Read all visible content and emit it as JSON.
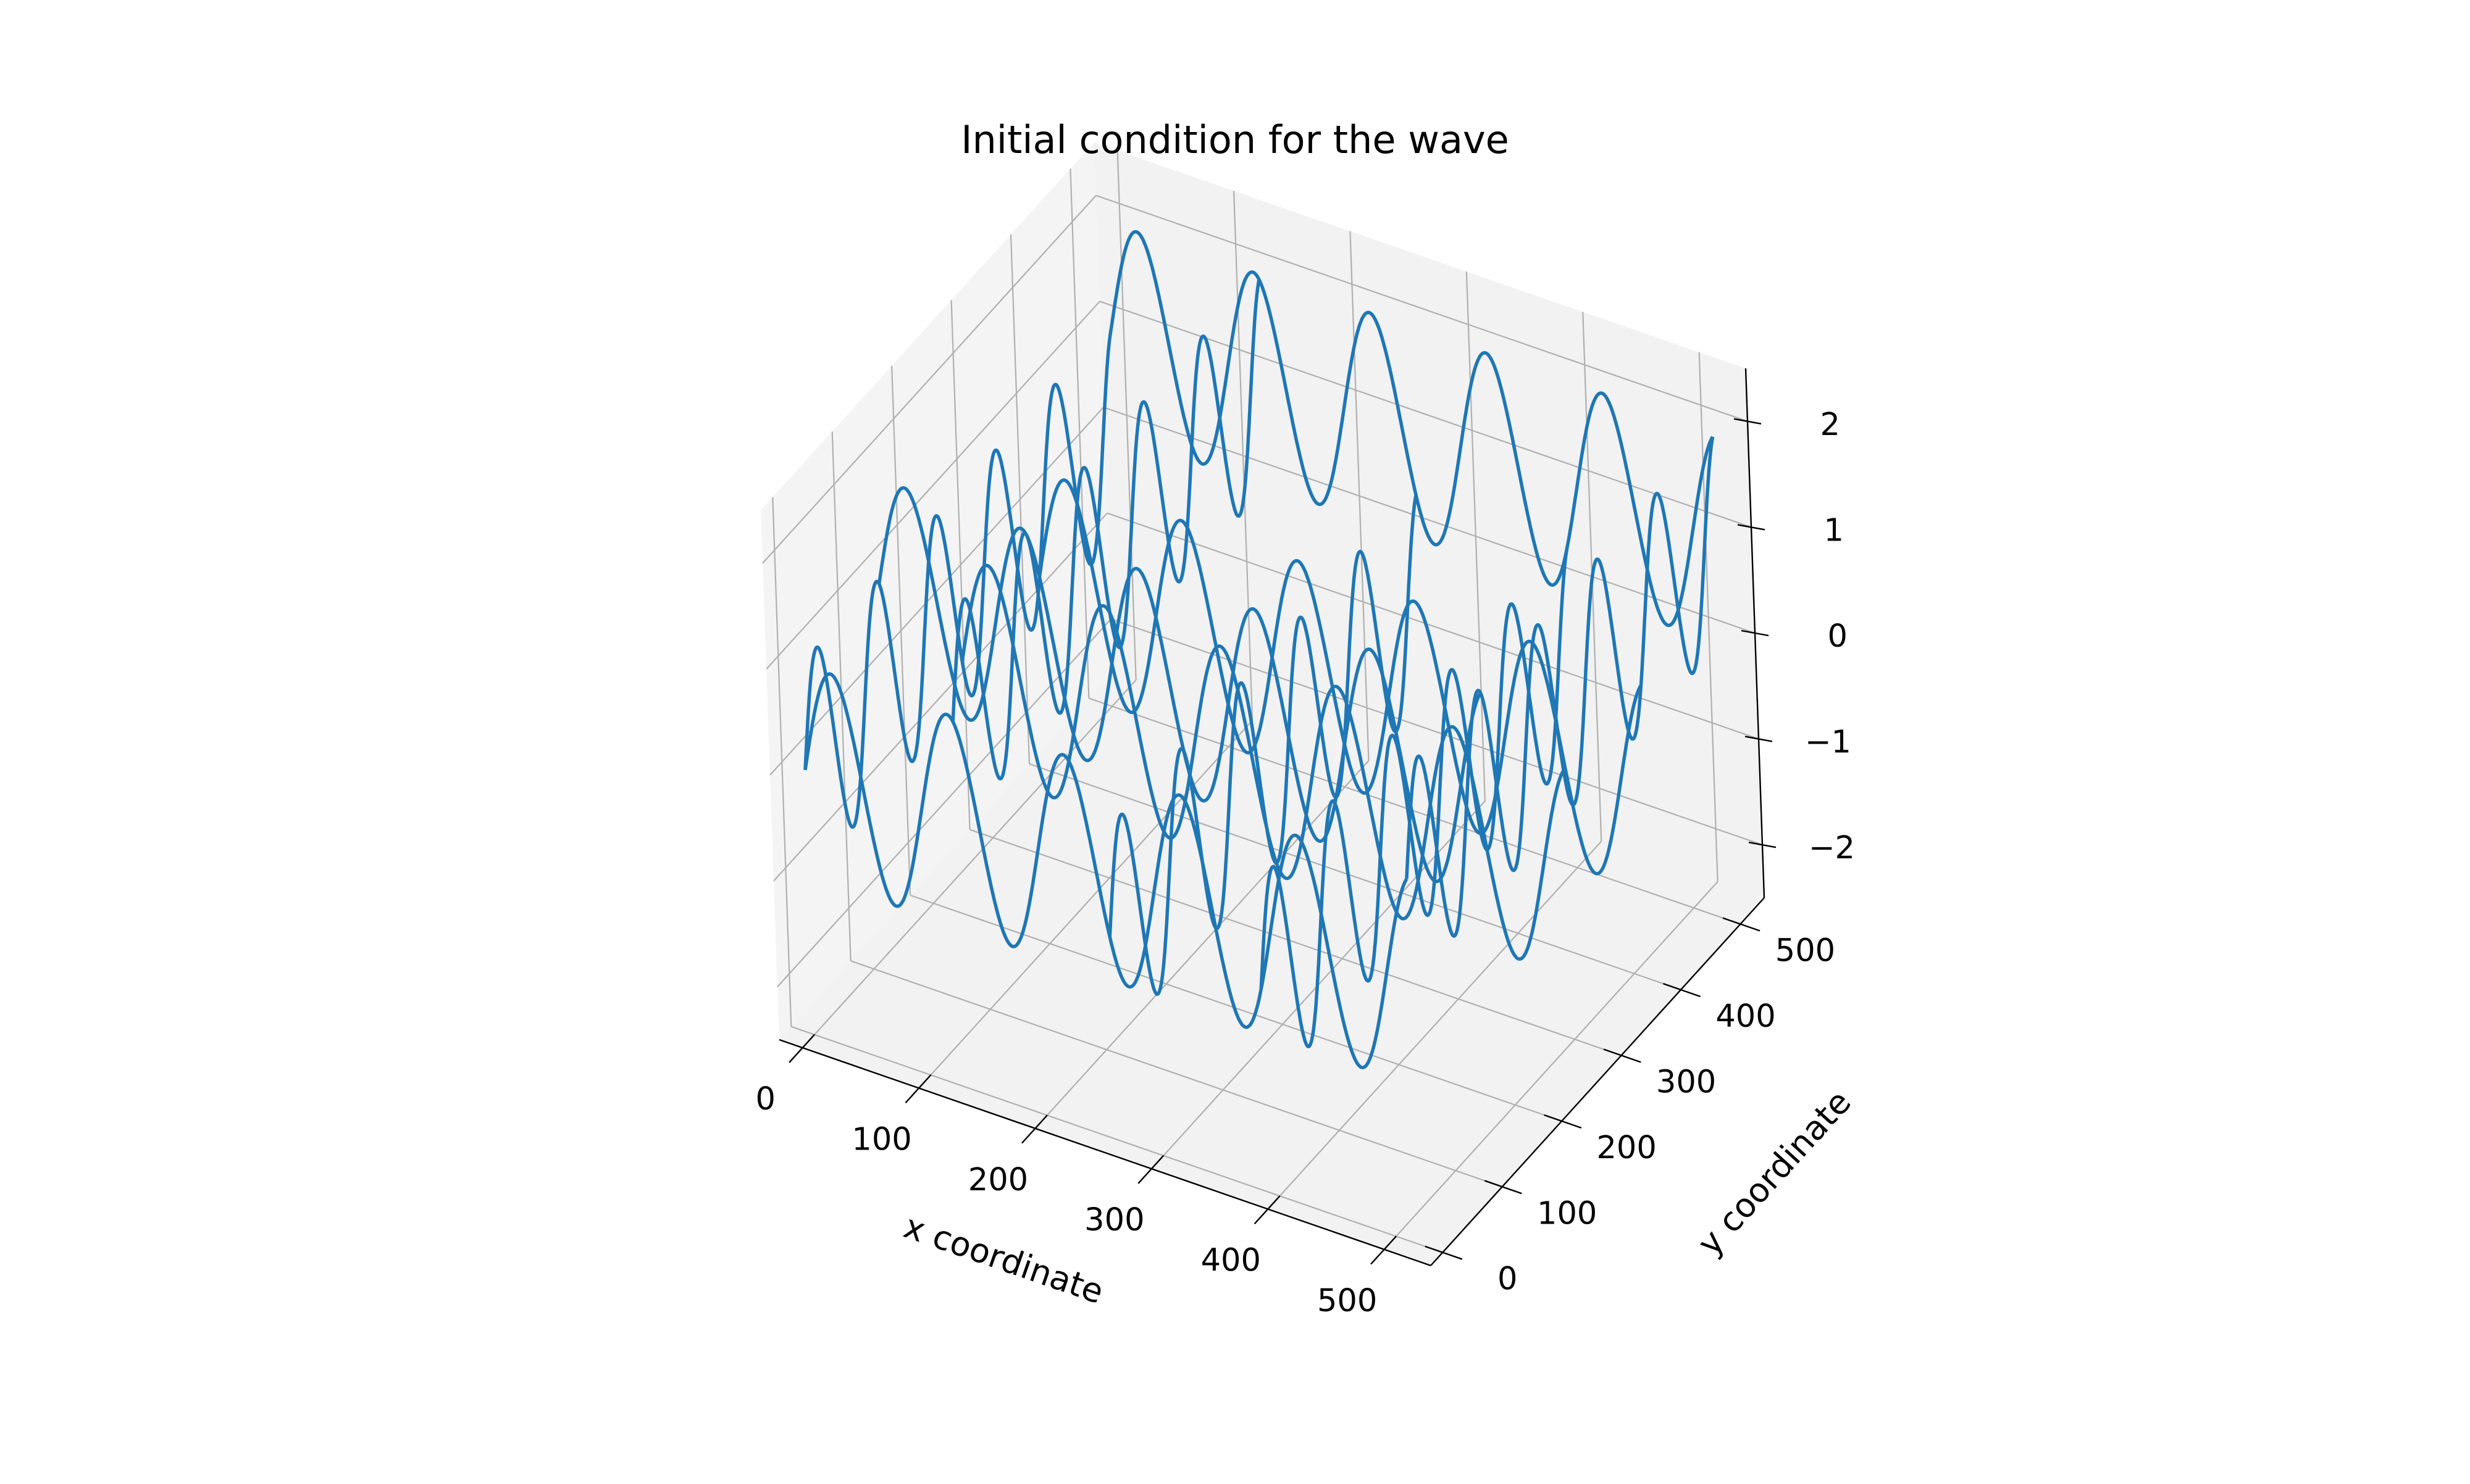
{
  "chart_data": {
    "type": "wireframe-3d",
    "title": "Initial condition for the wave",
    "xlabel": "x coordinate",
    "ylabel": "y coordinate",
    "zlabel": "",
    "xlim": [
      -20,
      540
    ],
    "ylim": [
      -20,
      540
    ],
    "zlim": [
      -2.5,
      2.5
    ],
    "xticks": [
      0,
      100,
      200,
      300,
      400,
      500
    ],
    "yticks": [
      0,
      100,
      200,
      300,
      400,
      500
    ],
    "zticks": [
      -2,
      -1,
      0,
      1,
      2
    ],
    "xtick_labels": [
      "0",
      "100",
      "200",
      "300",
      "400",
      "500"
    ],
    "ytick_labels": [
      "0",
      "100",
      "200",
      "300",
      "400",
      "500"
    ],
    "ztick_labels": [
      "−2",
      "−1",
      "0",
      "1",
      "2"
    ],
    "grid": true,
    "line_color": "#1f77b4",
    "surface": {
      "formula": "z = sin(2*pi*x/100) + sin(2*pi*y/100)",
      "x_range": [
        0,
        520
      ],
      "y_range": [
        0,
        520
      ],
      "curves_at_y": [
        0,
        130,
        260,
        390,
        520
      ],
      "curves_at_x": [
        0,
        130,
        260,
        390,
        520
      ]
    }
  }
}
